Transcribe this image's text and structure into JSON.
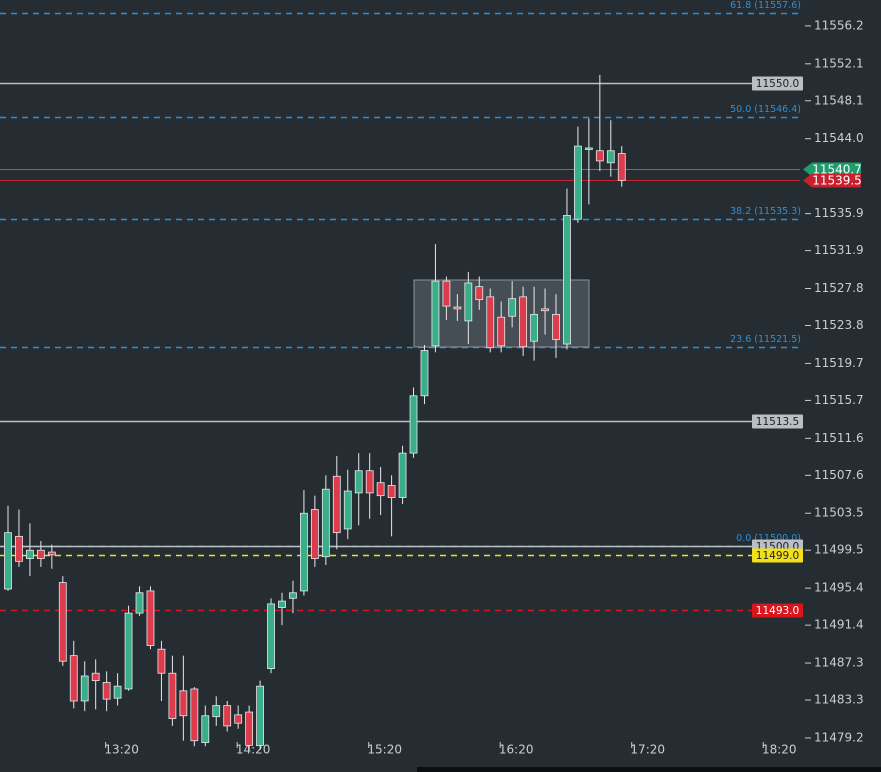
{
  "chart_data": {
    "type": "candlestick",
    "categories": [
      null,
      null,
      null,
      null,
      null,
      null,
      null,
      null,
      null,
      "13:20",
      null,
      null,
      null,
      null,
      null,
      null,
      null,
      null,
      null,
      null,
      null,
      "14:20",
      null,
      null,
      null,
      null,
      null,
      null,
      null,
      null,
      null,
      null,
      null,
      "15:20",
      null,
      null,
      null,
      null,
      null,
      null,
      null,
      null,
      null,
      null,
      null,
      "16:20",
      null,
      null,
      null,
      null,
      null,
      null,
      null,
      null,
      null,
      null,
      null,
      "17:20",
      null,
      null,
      null,
      null,
      null,
      null,
      null,
      null,
      null,
      null,
      null,
      "18:20"
    ],
    "open": [
      11495.3,
      11501.0,
      11498.6,
      11499.5,
      11499.3,
      11496.0,
      11488.1,
      11483.2,
      11486.2,
      11485.2,
      11483.5,
      11484.5,
      11492.7,
      11495.1,
      11488.8,
      11486.2,
      11484.3,
      11484.5,
      11478.7,
      11481.5,
      11482.7,
      11481.7,
      11482.0,
      11478.4,
      11486.7,
      11493.3,
      11494.3,
      11495.1,
      11503.9,
      11498.8,
      11507.5,
      11501.8,
      11505.7,
      11508.1,
      11506.8,
      11506.5,
      11505.2,
      11510.0,
      11516.2,
      11521.6,
      11528.6,
      11525.8,
      11524.3,
      11528.0,
      11526.9,
      11524.7,
      11524.8,
      11526.9,
      11522.1,
      11525.6,
      11525.0,
      11521.8,
      11535.3,
      11543.0,
      11542.7,
      11541.4,
      11542.4,
      null,
      null,
      null,
      null,
      null,
      null,
      null,
      null,
      null,
      null,
      null,
      null,
      null
    ],
    "high": [
      11504.3,
      11503.9,
      11502.4,
      11500.5,
      11500.1,
      11496.7,
      11489.7,
      11487.5,
      11487.7,
      11486.4,
      11486.2,
      11493.5,
      11495.6,
      11495.6,
      11489.7,
      11488.1,
      11488.1,
      11484.7,
      11482.7,
      11483.7,
      11483.2,
      11482.7,
      11482.7,
      11485.4,
      11494.3,
      11494.9,
      11496.2,
      11506.0,
      11505.4,
      11507.6,
      11509.7,
      11508.2,
      11510.0,
      11510.0,
      11508.5,
      11507.6,
      11510.8,
      11517.1,
      11521.7,
      11532.6,
      11529.1,
      11527.2,
      11529.6,
      11529.1,
      11527.8,
      11526.4,
      11528.6,
      11528.0,
      11528.0,
      11527.8,
      11527.2,
      11538.6,
      11545.3,
      11546.2,
      11550.9,
      11546.0,
      11543.2,
      null,
      null,
      null,
      null,
      null,
      null,
      null,
      null,
      null,
      null,
      null,
      null,
      null
    ],
    "low": [
      11495.1,
      11497.7,
      11496.7,
      11497.7,
      11497.5,
      11487.0,
      11482.4,
      11482.1,
      11482.3,
      11482.1,
      11482.7,
      11484.3,
      11492.4,
      11488.8,
      11483.2,
      11480.5,
      11478.9,
      11478.3,
      11478.3,
      11480.5,
      11479.9,
      11480.2,
      11477.9,
      11477.9,
      11486.2,
      11491.4,
      11492.7,
      11494.6,
      11497.7,
      11497.9,
      11499.6,
      11500.7,
      11502.2,
      11502.9,
      11503.3,
      11501.0,
      11504.5,
      11509.5,
      11515.3,
      11520.9,
      11524.4,
      11524.3,
      11521.8,
      11525.5,
      11520.9,
      11520.9,
      11523.6,
      11520.5,
      11520.0,
      11522.8,
      11520.3,
      11521.2,
      11534.9,
      11536.9,
      11540.5,
      11539.9,
      11538.8,
      null,
      null,
      null,
      null,
      null,
      null,
      null,
      null,
      null,
      null,
      null,
      null,
      null
    ],
    "close": [
      11501.4,
      11498.3,
      11499.5,
      11498.6,
      11499.0,
      11487.5,
      11483.2,
      11485.9,
      11485.4,
      11483.4,
      11484.8,
      11492.7,
      11494.9,
      11489.2,
      11486.2,
      11481.3,
      11481.6,
      11478.9,
      11481.6,
      11482.7,
      11480.5,
      11480.8,
      11478.4,
      11484.8,
      11493.7,
      11494.0,
      11494.9,
      11503.5,
      11498.6,
      11506.1,
      11501.4,
      11505.9,
      11508.1,
      11505.7,
      11505.4,
      11505.2,
      11510.0,
      11516.2,
      11521.1,
      11528.6,
      11525.9,
      11525.6,
      11528.4,
      11526.6,
      11521.4,
      11521.6,
      11526.7,
      11521.5,
      11525.0,
      11525.4,
      11522.3,
      11535.7,
      11543.2,
      11543.0,
      11541.6,
      11542.7,
      11539.5,
      null,
      null,
      null,
      null,
      null,
      null,
      null,
      null,
      null,
      null,
      null,
      null,
      null
    ],
    "up_color": "#3aae88",
    "down_color": "#dc3c4c",
    "ylim": [
      11476.6,
      11559.0
    ],
    "yticks": [
      11556.2,
      11552.1,
      11548.1,
      {
        "value": 11544,
        "label": "11544.0"
      },
      11535.9,
      11531.9,
      11527.8,
      11523.8,
      11519.7,
      11515.7,
      11511.6,
      11507.6,
      11503.5,
      11499.5,
      11495.4,
      11491.4,
      11487.3,
      11483.3,
      11479.2
    ],
    "levels": [
      {
        "label": "61.8 (11557.6)",
        "value": 11557.6,
        "color": "#2f8fd6",
        "style": "fib",
        "dashed": true
      },
      {
        "label": "11550.0",
        "value": 11550,
        "color": "#b9bfc4",
        "style": "tag",
        "dashed": false
      },
      {
        "label": "50.0 (11546.4)",
        "value": 11546.4,
        "color": "#2f8fd6",
        "style": "fib",
        "dashed": true
      },
      {
        "label": "11540.7",
        "value": 11540.7,
        "color": "#1f9c6b",
        "style": "price",
        "dashed": false
      },
      {
        "label": "11539.5",
        "value": 11539.5,
        "color": "#c8202c",
        "style": "price",
        "dashed": false
      },
      {
        "label": "38.2 (11535.3)",
        "value": 11535.3,
        "color": "#2f8fd6",
        "style": "fib",
        "dashed": true
      },
      {
        "label": "23.6 (11521.5)",
        "value": 11521.5,
        "color": "#2f8fd6",
        "style": "fib",
        "dashed": true
      },
      {
        "label": "11513.5",
        "value": 11513.5,
        "color": "#b9bfc4",
        "style": "tag",
        "dashed": false
      },
      {
        "label": "0.0 (11500.0)",
        "value": 11500,
        "color": "#2f8fd6",
        "style": "fib",
        "dashed": true
      },
      {
        "label": "11500.0",
        "value": 11500,
        "color": "#b9bfc4",
        "style": "tag",
        "dashed": false
      },
      {
        "label": "11499.0",
        "value": 11499,
        "color": "#f2e01a",
        "style": "tag",
        "dashed": true
      },
      {
        "label": "11493.0",
        "value": 11493,
        "color": "#d8141c",
        "style": "tag",
        "dashed": true
      }
    ]
  }
}
